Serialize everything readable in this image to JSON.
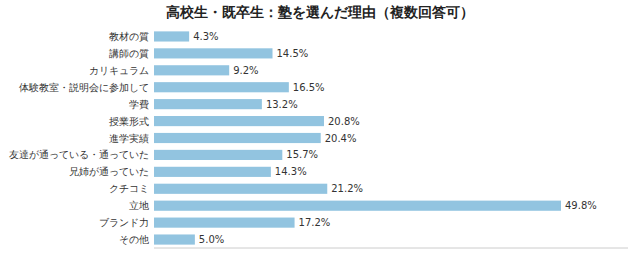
{
  "chart_data": {
    "type": "bar",
    "orientation": "horizontal",
    "title": "高校生・既卒生：塾を選んだ理由（複数回答可）",
    "categories": [
      "教材の質",
      "講師の質",
      "カリキュラム",
      "体験教室・説明会に参加して",
      "学費",
      "授業形式",
      "進学実績",
      "友達が通っている・通っていた",
      "兄姉が通っていた",
      "クチコミ",
      "立地",
      "ブランド力",
      "その他"
    ],
    "values": [
      4.3,
      14.5,
      9.2,
      16.5,
      13.2,
      20.8,
      20.4,
      15.7,
      14.3,
      21.2,
      49.8,
      17.2,
      5.0
    ],
    "value_labels": [
      "4.3%",
      "14.5%",
      "9.2%",
      "16.5%",
      "13.2%",
      "20.8%",
      "20.4%",
      "15.7%",
      "14.3%",
      "21.2%",
      "49.8%",
      "17.2%",
      "5.0%"
    ],
    "color": "#92C4E0",
    "xlim": [
      0,
      58
    ],
    "data_labels": true,
    "tick_labels": "y",
    "grid": false
  }
}
